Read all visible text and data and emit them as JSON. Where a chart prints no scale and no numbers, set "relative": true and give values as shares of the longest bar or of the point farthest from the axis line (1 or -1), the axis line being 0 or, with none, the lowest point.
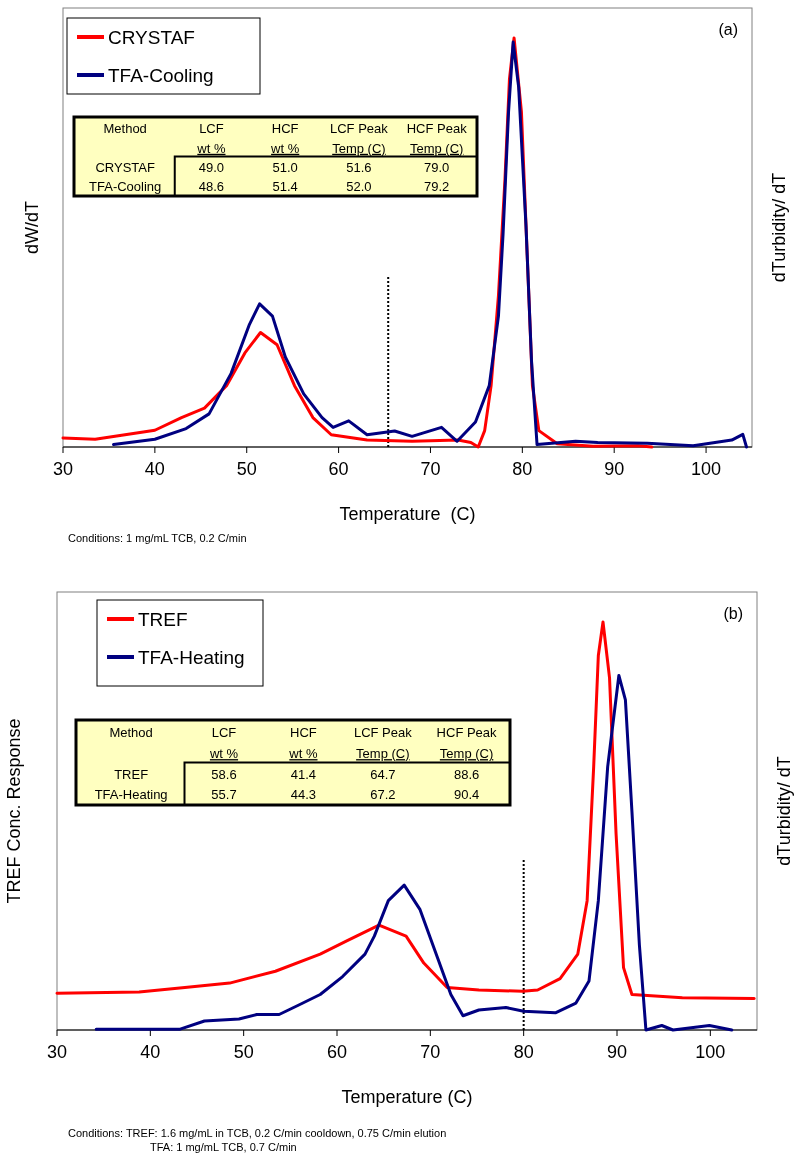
{
  "chart_data": [
    {
      "type": "line",
      "relative": true,
      "xlabel": "Temperature  (C)",
      "ylabel": "dW/dT",
      "y2label": "dTurbidity/ dT",
      "xlim": [
        30,
        105
      ],
      "xticks": [
        30,
        40,
        50,
        60,
        70,
        80,
        90,
        100
      ],
      "legend": "top left",
      "grid": false,
      "marker": "none",
      "line_style": "solid",
      "ref_lines": [
        {
          "axis": "x",
          "value": 65.4,
          "color": "#000000",
          "line_style": "dotted"
        }
      ],
      "annotations": [
        "(a)",
        "Conditions: 1 mg/mL TCB, 0.2 C/min",
        "Method",
        "LCF",
        "HCF",
        "LCF Peak",
        "HCF Peak",
        "wt %",
        "wt %",
        "Temp (C)",
        "Temp (C)",
        "CRYSTAF",
        "49.0",
        "51.0",
        "51.6",
        "79.0",
        "TFA-Cooling",
        "48.6",
        "51.4",
        "52.0",
        "79.2"
      ],
      "series": [
        {
          "name": "CRYSTAF",
          "color": "#ff0000",
          "x": [
            30,
            33.5,
            40,
            42.9,
            45.4,
            47.8,
            49.8,
            51.5,
            53.3,
            55.2,
            57.2,
            59.2,
            63.1,
            68,
            73,
            74.4,
            75.2,
            75.9,
            76.6,
            77.4,
            78.1,
            78.6,
            79.1,
            79.9,
            80.6,
            81.1,
            81.8,
            83.8,
            87.7,
            92.6,
            94.1
          ],
          "values": [
            0.022,
            0.019,
            0.041,
            0.072,
            0.095,
            0.15,
            0.23,
            0.28,
            0.25,
            0.15,
            0.072,
            0.03,
            0.017,
            0.014,
            0.017,
            0.011,
            0,
            0.04,
            0.15,
            0.37,
            0.65,
            0.9,
            1.0,
            0.82,
            0.43,
            0.15,
            0.04,
            0.008,
            0.002,
            0.003,
            0
          ]
        },
        {
          "name": "TFA-Cooling",
          "color": "#000080",
          "x": [
            35.5,
            40,
            43.4,
            45.9,
            48.3,
            50.3,
            51.4,
            52.8,
            54.2,
            56.2,
            58.2,
            59.4,
            61.1,
            63.1,
            66.1,
            68,
            71.2,
            72.9,
            74.9,
            76.4,
            77.4,
            77.9,
            78.5,
            79,
            79.6,
            80.4,
            81,
            81.6,
            85.8,
            88.2,
            93.6,
            98.6,
            102.8,
            104,
            104.4
          ],
          "values": [
            0.006,
            0.019,
            0.045,
            0.081,
            0.18,
            0.3,
            0.35,
            0.32,
            0.22,
            0.13,
            0.072,
            0.048,
            0.064,
            0.03,
            0.039,
            0.026,
            0.048,
            0.014,
            0.061,
            0.15,
            0.32,
            0.52,
            0.82,
            0.99,
            0.88,
            0.54,
            0.21,
            0.006,
            0.014,
            0.011,
            0.009,
            0.003,
            0.017,
            0.031,
            0
          ]
        }
      ]
    },
    {
      "type": "line",
      "relative": true,
      "xlabel": "Temperature (C)",
      "ylabel": "TREF Conc. Response",
      "y2label": "dTurbidity/ dT",
      "xlim": [
        30,
        105
      ],
      "xticks": [
        30,
        40,
        50,
        60,
        70,
        80,
        90,
        100
      ],
      "legend": "top left",
      "grid": false,
      "marker": "none",
      "line_style": "solid",
      "ref_lines": [
        {
          "axis": "x",
          "value": 80,
          "color": "#000000",
          "line_style": "dotted"
        }
      ],
      "annotations": [
        "(b)",
        "Conditions: TREF: 1.6 mg/mL in TCB, 0.2 C/min cooldown, 0.75 C/min elution",
        "TFA: 1 mg/mL TCB, 0.7 C/min",
        "Method",
        "LCF",
        "HCF",
        "LCF Peak",
        "HCF Peak",
        "wt %",
        "wt %",
        "Temp (C)",
        "Temp (C)",
        "TREF",
        "58.6",
        "41.4",
        "64.7",
        "88.6",
        "TFA-Heating",
        "55.7",
        "44.3",
        "67.2",
        "90.4"
      ],
      "series": [
        {
          "name": "TREF",
          "color": "#ff0000",
          "x": [
            30,
            38.8,
            43.7,
            48.5,
            53.4,
            58.2,
            61.1,
            64.5,
            67.4,
            69.3,
            71.8,
            75.2,
            79.9,
            81.5,
            83.9,
            85.8,
            86.8,
            87.5,
            88,
            88.5,
            89.2,
            89.9,
            90.7,
            91.6,
            97,
            104.7
          ],
          "values": [
            0.09,
            0.093,
            0.104,
            0.115,
            0.144,
            0.186,
            0.219,
            0.257,
            0.23,
            0.164,
            0.104,
            0.098,
            0.095,
            0.098,
            0.126,
            0.186,
            0.317,
            0.645,
            0.918,
            1.0,
            0.863,
            0.481,
            0.153,
            0.087,
            0.079,
            0.077
          ]
        },
        {
          "name": "TFA-Heating",
          "color": "#000080",
          "x": [
            34.2,
            43.2,
            45.8,
            49.5,
            51.4,
            53.8,
            55.8,
            58.2,
            60.6,
            63,
            64,
            65.5,
            67.2,
            68.9,
            70.8,
            72.2,
            73.5,
            75.2,
            78.1,
            80,
            83.4,
            85.6,
            87,
            88,
            89,
            90.2,
            90.9,
            91.6,
            92.4,
            93.1,
            94.8,
            96,
            99.9,
            102.3
          ],
          "values": [
            0.002,
            0.002,
            0.022,
            0.027,
            0.038,
            0.038,
            0.06,
            0.087,
            0.131,
            0.186,
            0.23,
            0.317,
            0.355,
            0.295,
            0.175,
            0.087,
            0.035,
            0.049,
            0.055,
            0.046,
            0.042,
            0.066,
            0.12,
            0.317,
            0.645,
            0.869,
            0.809,
            0.536,
            0.208,
            0,
            0.011,
            0,
            0.011,
            0
          ]
        }
      ]
    }
  ]
}
